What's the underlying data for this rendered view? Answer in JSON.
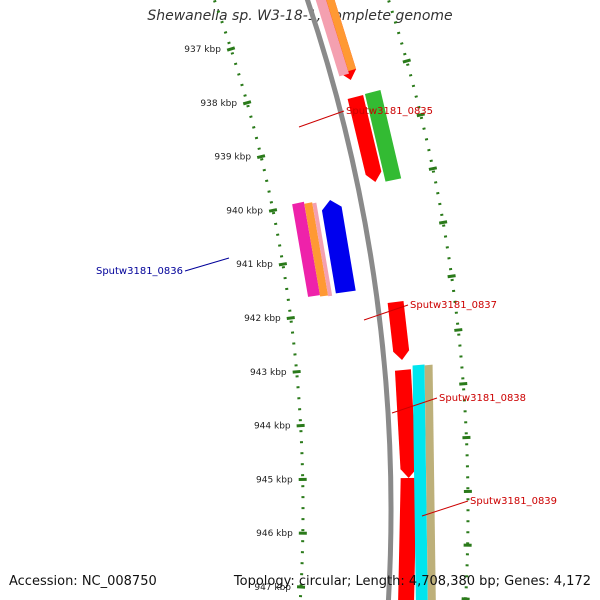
{
  "title": "Shewanella sp. W3-18-1, complete genome",
  "footer": {
    "accession": "Accession: NC_008750",
    "summary": "Topology: circular; Length: 4,708,380 bp; Genes: 4,172"
  },
  "ticks": [
    {
      "label": "937 kbp"
    },
    {
      "label": "938 kbp"
    },
    {
      "label": "939 kbp"
    },
    {
      "label": "940 kbp"
    },
    {
      "label": "941 kbp"
    },
    {
      "label": "942 kbp"
    },
    {
      "label": "943 kbp"
    },
    {
      "label": "944 kbp"
    },
    {
      "label": "945 kbp"
    },
    {
      "label": "946 kbp"
    },
    {
      "label": "947 kbp"
    }
  ],
  "genes": [
    {
      "label": "Sputw3181_0835",
      "color": "#cc0000"
    },
    {
      "label": "Sputw3181_0836",
      "color": "#000099"
    },
    {
      "label": "Sputw3181_0837",
      "color": "#cc0000"
    },
    {
      "label": "Sputw3181_0838",
      "color": "#cc0000"
    },
    {
      "label": "Sputw3181_0839",
      "color": "#cc0000"
    }
  ],
  "colors": {
    "backbone": "#8a8a8a",
    "tick": "#2a7a1a",
    "cds": "#ff0000",
    "green": "#33bb33",
    "blue": "#0000ee",
    "cyan": "#00e5ee",
    "tan": "#bdb07a",
    "orange": "#ff9933",
    "magenta": "#ee22aa",
    "pink": "#f4a0b0"
  }
}
